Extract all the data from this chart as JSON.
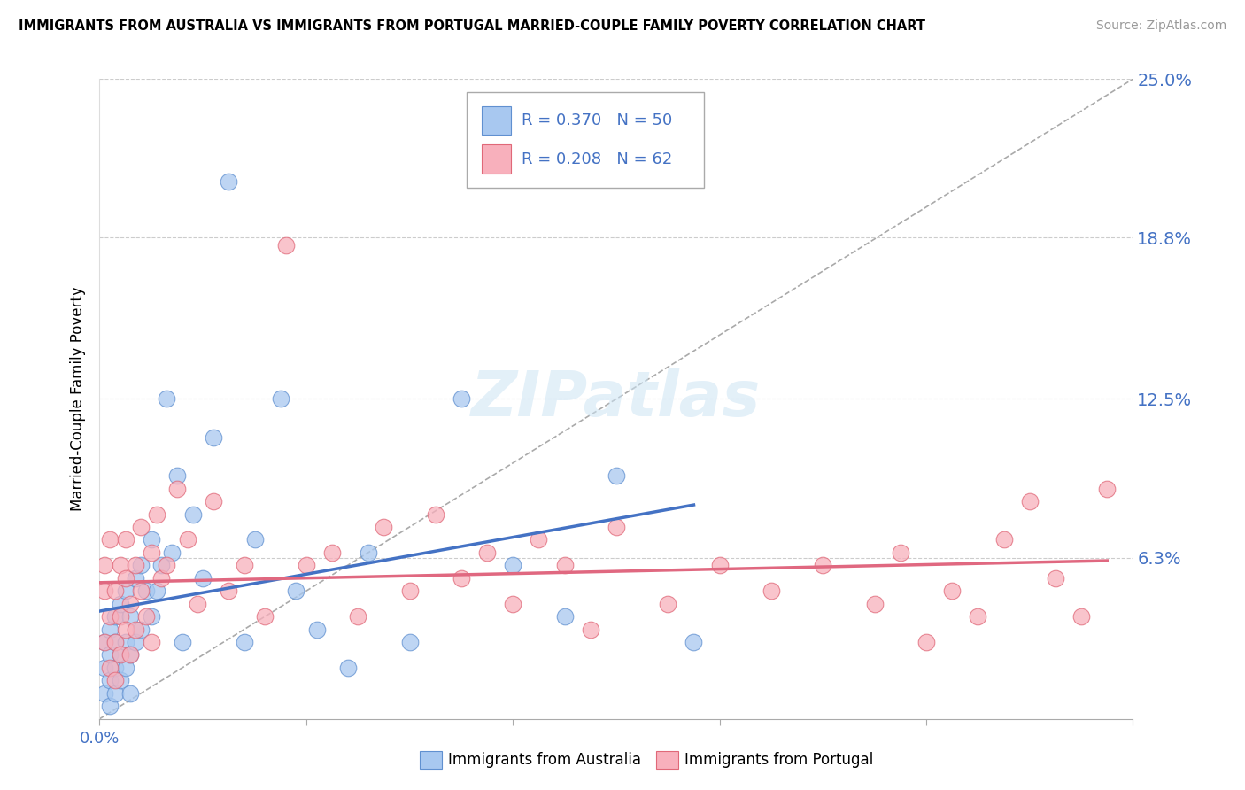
{
  "title": "IMMIGRANTS FROM AUSTRALIA VS IMMIGRANTS FROM PORTUGAL MARRIED-COUPLE FAMILY POVERTY CORRELATION CHART",
  "source": "Source: ZipAtlas.com",
  "ylabel": "Married-Couple Family Poverty",
  "xlim": [
    0.0,
    0.2
  ],
  "ylim": [
    0.0,
    0.25
  ],
  "ytick_vals": [
    0.063,
    0.125,
    0.188,
    0.25
  ],
  "ytick_labels": [
    "6.3%",
    "12.5%",
    "18.8%",
    "25.0%"
  ],
  "legend_australia": "R = 0.370   N = 50",
  "legend_portugal": "R = 0.208   N = 62",
  "color_australia_fill": "#a8c8f0",
  "color_australia_edge": "#6090d0",
  "color_portugal_fill": "#f8b0bc",
  "color_portugal_edge": "#e06878",
  "color_trend_australia": "#4472c4",
  "color_trend_portugal": "#e06880",
  "color_dashed": "#aaaaaa",
  "australia_x": [
    0.001,
    0.001,
    0.001,
    0.002,
    0.002,
    0.002,
    0.002,
    0.003,
    0.003,
    0.003,
    0.003,
    0.004,
    0.004,
    0.004,
    0.005,
    0.005,
    0.005,
    0.006,
    0.006,
    0.006,
    0.007,
    0.007,
    0.008,
    0.008,
    0.009,
    0.01,
    0.01,
    0.011,
    0.012,
    0.013,
    0.014,
    0.015,
    0.016,
    0.018,
    0.02,
    0.022,
    0.025,
    0.028,
    0.03,
    0.035,
    0.038,
    0.042,
    0.048,
    0.052,
    0.06,
    0.07,
    0.08,
    0.09,
    0.1,
    0.115
  ],
  "australia_y": [
    0.02,
    0.03,
    0.01,
    0.025,
    0.015,
    0.035,
    0.005,
    0.04,
    0.02,
    0.03,
    0.01,
    0.025,
    0.045,
    0.015,
    0.03,
    0.05,
    0.02,
    0.04,
    0.025,
    0.01,
    0.055,
    0.03,
    0.06,
    0.035,
    0.05,
    0.04,
    0.07,
    0.05,
    0.06,
    0.125,
    0.065,
    0.095,
    0.03,
    0.08,
    0.055,
    0.11,
    0.21,
    0.03,
    0.07,
    0.125,
    0.05,
    0.035,
    0.02,
    0.065,
    0.03,
    0.125,
    0.06,
    0.04,
    0.095,
    0.03
  ],
  "portugal_x": [
    0.001,
    0.001,
    0.001,
    0.002,
    0.002,
    0.002,
    0.003,
    0.003,
    0.003,
    0.004,
    0.004,
    0.004,
    0.005,
    0.005,
    0.005,
    0.006,
    0.006,
    0.007,
    0.007,
    0.008,
    0.008,
    0.009,
    0.01,
    0.01,
    0.011,
    0.012,
    0.013,
    0.015,
    0.017,
    0.019,
    0.022,
    0.025,
    0.028,
    0.032,
    0.036,
    0.04,
    0.045,
    0.05,
    0.055,
    0.06,
    0.065,
    0.07,
    0.075,
    0.08,
    0.085,
    0.09,
    0.095,
    0.1,
    0.11,
    0.12,
    0.13,
    0.14,
    0.15,
    0.155,
    0.16,
    0.165,
    0.17,
    0.175,
    0.18,
    0.185,
    0.19,
    0.195
  ],
  "portugal_y": [
    0.05,
    0.03,
    0.06,
    0.04,
    0.02,
    0.07,
    0.03,
    0.05,
    0.015,
    0.06,
    0.025,
    0.04,
    0.07,
    0.035,
    0.055,
    0.045,
    0.025,
    0.06,
    0.035,
    0.05,
    0.075,
    0.04,
    0.065,
    0.03,
    0.08,
    0.055,
    0.06,
    0.09,
    0.07,
    0.045,
    0.085,
    0.05,
    0.06,
    0.04,
    0.185,
    0.06,
    0.065,
    0.04,
    0.075,
    0.05,
    0.08,
    0.055,
    0.065,
    0.045,
    0.07,
    0.06,
    0.035,
    0.075,
    0.045,
    0.06,
    0.05,
    0.06,
    0.045,
    0.065,
    0.03,
    0.05,
    0.04,
    0.07,
    0.085,
    0.055,
    0.04,
    0.09
  ]
}
